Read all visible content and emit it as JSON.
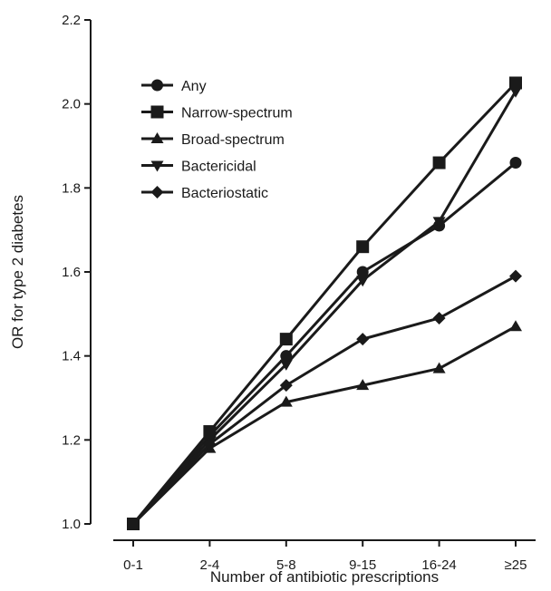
{
  "chart_data": {
    "type": "line",
    "xlabel": "Number of antibiotic prescriptions",
    "ylabel": "OR for type 2 diabetes",
    "categories": [
      "0-1",
      "2-4",
      "5-8",
      "9-15",
      "16-24",
      "≥25"
    ],
    "ylim": [
      1.0,
      2.2
    ],
    "yticks": [
      "1.0",
      "1.2",
      "1.4",
      "1.6",
      "1.8",
      "2.0",
      "2.2"
    ],
    "grid": false,
    "legend_position": "top-left",
    "line_color": "#1a1a1a",
    "series": [
      {
        "name": "Any",
        "marker": "circle",
        "values": [
          1.0,
          1.21,
          1.4,
          1.6,
          1.71,
          1.86
        ]
      },
      {
        "name": "Narrow-spectrum",
        "marker": "square",
        "values": [
          1.0,
          1.22,
          1.44,
          1.66,
          1.86,
          2.05
        ]
      },
      {
        "name": "Broad-spectrum",
        "marker": "triangle-up",
        "values": [
          1.0,
          1.18,
          1.29,
          1.33,
          1.37,
          1.47
        ]
      },
      {
        "name": "Bactericidal",
        "marker": "triangle-down",
        "values": [
          1.0,
          1.2,
          1.38,
          1.58,
          1.72,
          2.03
        ]
      },
      {
        "name": "Bacteriostatic",
        "marker": "diamond",
        "values": [
          1.0,
          1.19,
          1.33,
          1.44,
          1.49,
          1.59
        ]
      }
    ]
  }
}
